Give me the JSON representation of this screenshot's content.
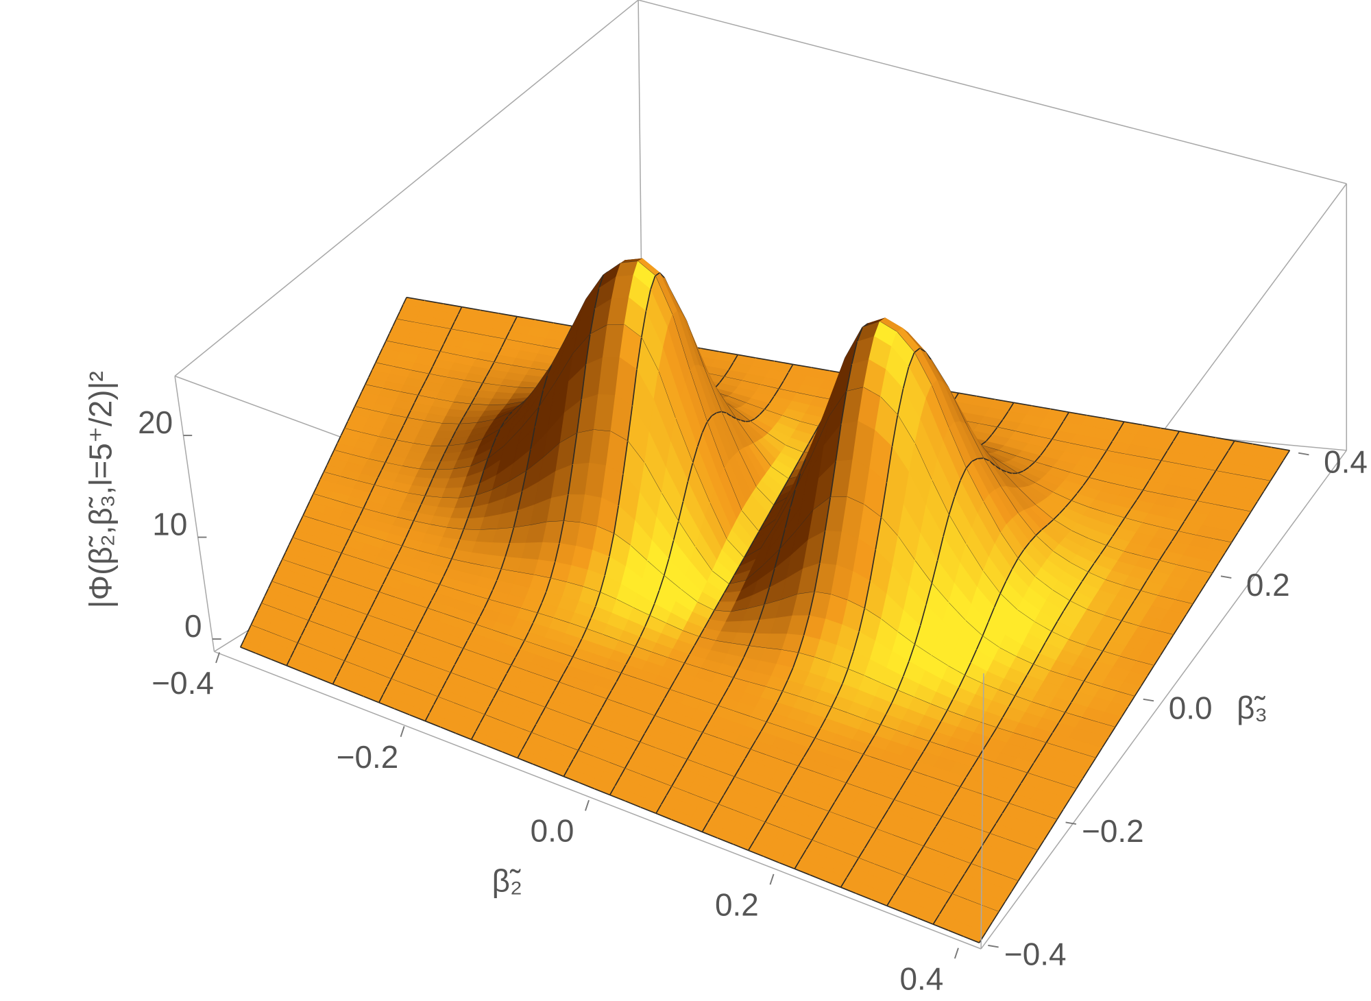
{
  "chart_data": {
    "type": "surface",
    "x_label": "β̃₂",
    "y_label": "β̃₃",
    "z_label": "|Φ(β̃₂,β̃₃,l=5⁺/2)|²",
    "x": [
      -0.4,
      -0.35,
      -0.3,
      -0.25,
      -0.2,
      -0.15,
      -0.1,
      -0.05,
      0,
      0.05,
      0.1,
      0.15,
      0.2,
      0.25,
      0.3,
      0.35,
      0.4
    ],
    "y": [
      -0.4,
      -0.35,
      -0.3,
      -0.25,
      -0.2,
      -0.15,
      -0.1,
      -0.05,
      0,
      0.05,
      0.1,
      0.15,
      0.2,
      0.25,
      0.3,
      0.35,
      0.4
    ],
    "z": [
      [
        0,
        0,
        0,
        0,
        0,
        0,
        0,
        0,
        0,
        0,
        0,
        0,
        0,
        0,
        0,
        0,
        0
      ],
      [
        0,
        0,
        0,
        0,
        0,
        0,
        0,
        0,
        0,
        0,
        0,
        0,
        0,
        0,
        0,
        0,
        0
      ],
      [
        0,
        0,
        0,
        0,
        0,
        0,
        0,
        0,
        0,
        0,
        0,
        0,
        0,
        0,
        0,
        0,
        0
      ],
      [
        0,
        0,
        0,
        0,
        0,
        0,
        0,
        0,
        0,
        0,
        0,
        0,
        0,
        0,
        0,
        0,
        0
      ],
      [
        0,
        0,
        0,
        0,
        0,
        0,
        0,
        0,
        0,
        0,
        0,
        0,
        0,
        0,
        0,
        0,
        0
      ],
      [
        0,
        0,
        0,
        0,
        0.1,
        0.3,
        0.3,
        0.1,
        0,
        0.1,
        0.3,
        0.3,
        0.1,
        0,
        0,
        0,
        0
      ],
      [
        0,
        0,
        0,
        0.2,
        0.7,
        1.3,
        1.4,
        0.6,
        0,
        0.6,
        1.4,
        1.3,
        0.7,
        0.2,
        0,
        0,
        0
      ],
      [
        0,
        0,
        0.2,
        0.8,
        2.4,
        4.5,
        4.7,
        2,
        0,
        2,
        4.7,
        4.5,
        2.4,
        0.8,
        0.2,
        0,
        0
      ],
      [
        0,
        0.1,
        0.4,
        1.8,
        5.6,
        10.7,
        11.3,
        4.8,
        0,
        4.8,
        11.3,
        10.7,
        5.6,
        1.8,
        0.4,
        0.1,
        0
      ],
      [
        0,
        0.1,
        0.7,
        3.1,
        9.5,
        18,
        19,
        8,
        0,
        8,
        19,
        18,
        9.5,
        3.1,
        0.7,
        0.1,
        0
      ],
      [
        0,
        0.1,
        0.8,
        3.7,
        11.3,
        21.4,
        22.6,
        9.5,
        0,
        9.5,
        22.6,
        21.4,
        11.3,
        3.7,
        0.8,
        0.1,
        0
      ],
      [
        0,
        0.1,
        0.7,
        3.1,
        9.5,
        18,
        19,
        8,
        0,
        8,
        19,
        18,
        9.5,
        3.1,
        0.7,
        0.1,
        0
      ],
      [
        0,
        0.1,
        0.4,
        1.8,
        5.6,
        10.7,
        11.3,
        4.8,
        0,
        4.8,
        11.3,
        10.7,
        5.6,
        1.8,
        0.4,
        0.1,
        0
      ],
      [
        0,
        0,
        0.2,
        0.8,
        2.4,
        4.5,
        4.7,
        2,
        0,
        2,
        4.7,
        4.5,
        2.4,
        0.8,
        0.2,
        0,
        0
      ],
      [
        0,
        0,
        0,
        0.2,
        0.7,
        1.3,
        1.4,
        0.6,
        0,
        0.6,
        1.4,
        1.3,
        0.7,
        0.2,
        0,
        0,
        0
      ],
      [
        0,
        0,
        0,
        0,
        0.1,
        0.3,
        0.3,
        0.1,
        0,
        0.1,
        0.3,
        0.3,
        0.1,
        0,
        0,
        0,
        0
      ],
      [
        0,
        0,
        0,
        0,
        0,
        0,
        0,
        0,
        0,
        0,
        0,
        0,
        0,
        0,
        0,
        0,
        0
      ]
    ],
    "xlim": [
      -0.4,
      0.4
    ],
    "ylim": [
      -0.4,
      0.4
    ],
    "zlim": [
      0,
      24.6
    ],
    "xticks": [
      {
        "value": -0.4,
        "label": "−0.4"
      },
      {
        "value": -0.2,
        "label": "−0.2"
      },
      {
        "value": 0,
        "label": "0.0"
      },
      0.2,
      0.4
    ],
    "yticks": [
      {
        "value": -0.4,
        "label": "−0.4"
      },
      {
        "value": -0.2,
        "label": "−0.2"
      },
      {
        "value": 0,
        "label": "0.0"
      },
      0.2,
      0.4
    ],
    "zticks": [
      0,
      10,
      20
    ],
    "color": "#f39a1c",
    "mesh": true
  }
}
